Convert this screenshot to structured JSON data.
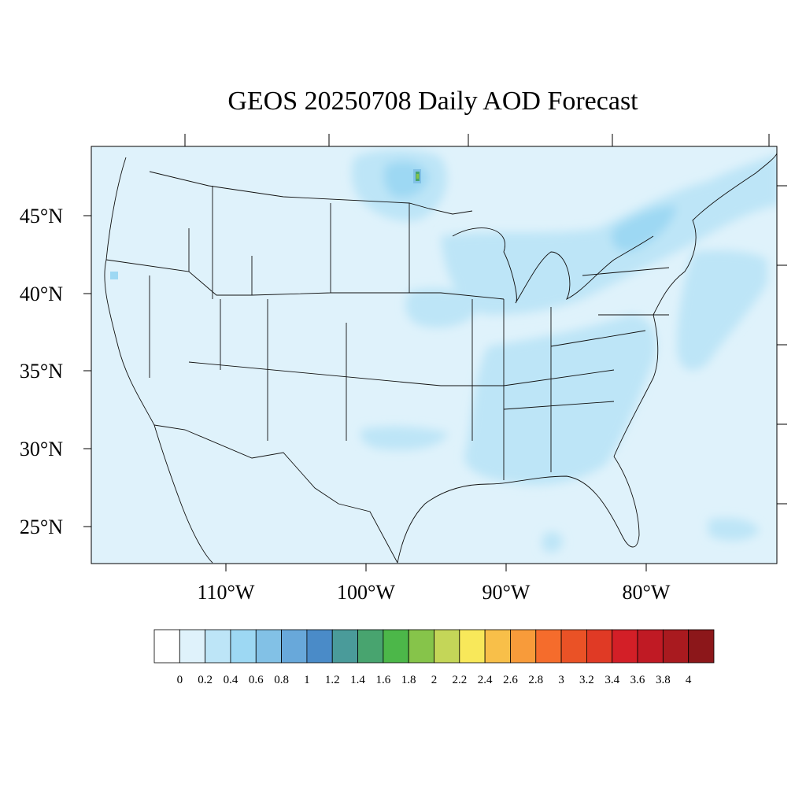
{
  "title": "GEOS 20250708 Daily AOD Forecast",
  "map": {
    "background_color": "#dff2fb",
    "lat_labels": [
      "45°N",
      "40°N",
      "35°N",
      "30°N",
      "25°N"
    ],
    "lon_labels": [
      "110°W",
      "100°W",
      "90°W",
      "80°W"
    ]
  },
  "chart_data": {
    "type": "heatmap",
    "title": "GEOS 20250708 Daily AOD Forecast",
    "ylabel_ticks": [
      "45°N",
      "40°N",
      "35°N",
      "30°N",
      "25°N"
    ],
    "xlabel_ticks": [
      "110°W",
      "100°W",
      "90°W",
      "80°W"
    ],
    "lat_ticks_deg": [
      45,
      40,
      35,
      30,
      25
    ],
    "lon_ticks_deg": [
      -110,
      -100,
      -90,
      -80
    ],
    "colorbar": {
      "tick_labels": [
        "0",
        "0.2",
        "0.4",
        "0.6",
        "0.8",
        "1",
        "1.2",
        "1.4",
        "1.6",
        "1.8",
        "2",
        "2.2",
        "2.4",
        "2.6",
        "2.8",
        "3",
        "3.2",
        "3.4",
        "3.6",
        "3.8",
        "4"
      ],
      "colors": [
        "#ffffff",
        "#dff2fb",
        "#bde5f7",
        "#9dd8f3",
        "#82c1e6",
        "#68a8da",
        "#4a8bc8",
        "#4a9b9a",
        "#48a46f",
        "#4cb749",
        "#86c44a",
        "#c4d658",
        "#f8e85a",
        "#f8bf49",
        "#f89b3a",
        "#f56c2c",
        "#ea5226",
        "#e03a25",
        "#d31f27",
        "#c01a24",
        "#a91a1f",
        "#8c171a"
      ]
    },
    "dominant_value_range": [
      0.0,
      0.4
    ],
    "max_value_observed": 1.8,
    "features": [
      {
        "region": "upper Midwest / Minnesota smoke plume",
        "value_range": [
          0.4,
          1.8
        ]
      },
      {
        "region": "Great Lakes to Northeast corridor",
        "value_range": [
          0.2,
          0.8
        ]
      },
      {
        "region": "Southeast US and Gulf coast",
        "value_range": [
          0.2,
          0.6
        ]
      },
      {
        "region": "Western US background",
        "value_range": [
          0.0,
          0.2
        ]
      }
    ]
  }
}
